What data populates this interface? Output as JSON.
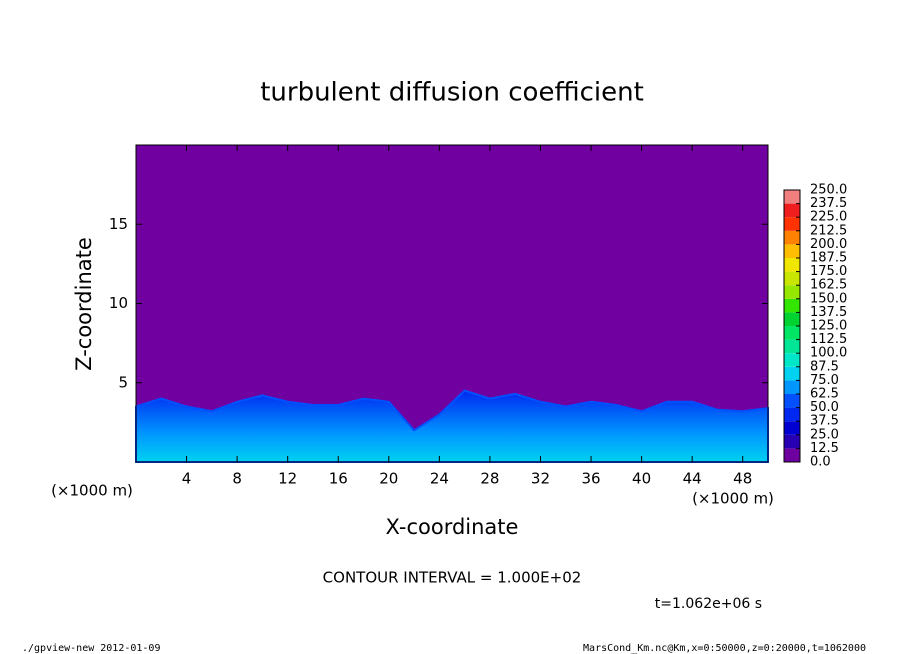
{
  "chart_data": {
    "type": "contour",
    "title": "turbulent diffusion coefficient",
    "x_label": "X-coordinate",
    "y_label": "Z-coordinate",
    "x_unit": "(×1000 m)",
    "y_unit": "(×1000 m)",
    "contour_interval": "CONTOUR INTERVAL = 1.000E+02",
    "time_label": "t=1.062e+06 s",
    "footer_left": "./gpview-new  2012-01-09",
    "footer_right": "MarsCond_Km.nc@Km,x=0:50000,z=0:20000,t=1062000",
    "xlim": [
      0,
      50
    ],
    "xticks": [
      4,
      8,
      12,
      16,
      20,
      24,
      28,
      32,
      36,
      40,
      44,
      48
    ],
    "ylim": [
      0,
      20
    ],
    "yticks": [
      5,
      10,
      15
    ],
    "background_color": "#7000a0",
    "layer_top": {
      "color": "#0050ff",
      "x": [
        0,
        2,
        4,
        6,
        8,
        10,
        12,
        14,
        16,
        18,
        20,
        22,
        24,
        26,
        28,
        30,
        32,
        34,
        36,
        38,
        40,
        42,
        44,
        46,
        48,
        50
      ],
      "values": [
        3.5,
        4,
        3.5,
        3.2,
        3.8,
        4.2,
        3.8,
        3.6,
        3.6,
        4,
        3.8,
        2,
        3,
        4.5,
        4,
        4.3,
        3.8,
        3.5,
        3.8,
        3.6,
        3.2,
        3.8,
        3.8,
        3.3,
        3.2,
        3.4
      ]
    },
    "colorbar": {
      "levels": [
        {
          "value": 0,
          "label": "0.0"
        },
        12.5,
        {
          "value": 25,
          "label": "25.0"
        },
        37.5,
        {
          "value": 50,
          "label": "50.0"
        },
        62.5,
        {
          "value": 75,
          "label": "75.0"
        },
        87.5,
        {
          "value": 100,
          "label": "100.0"
        },
        112.5,
        {
          "value": 125,
          "label": "125.0"
        },
        137.5,
        {
          "value": 150,
          "label": "150.0"
        },
        162.5,
        {
          "value": 175,
          "label": "175.0"
        },
        187.5,
        {
          "value": 200,
          "label": "200.0"
        },
        212.5,
        {
          "value": 225,
          "label": "225.0"
        },
        237.5,
        {
          "value": 250,
          "label": "250.0"
        }
      ],
      "colors": [
        "#6e00a0",
        "#2800b4",
        "#0000d0",
        "#0028f0",
        "#0050ff",
        "#0096ff",
        "#00d2f0",
        "#00e6c8",
        "#00e696",
        "#00e664",
        "#00d232",
        "#32e600",
        "#96e600",
        "#c8e600",
        "#f0e600",
        "#ffbe00",
        "#ff8200",
        "#ff3200",
        "#f01e1e",
        "#f08080"
      ]
    }
  }
}
